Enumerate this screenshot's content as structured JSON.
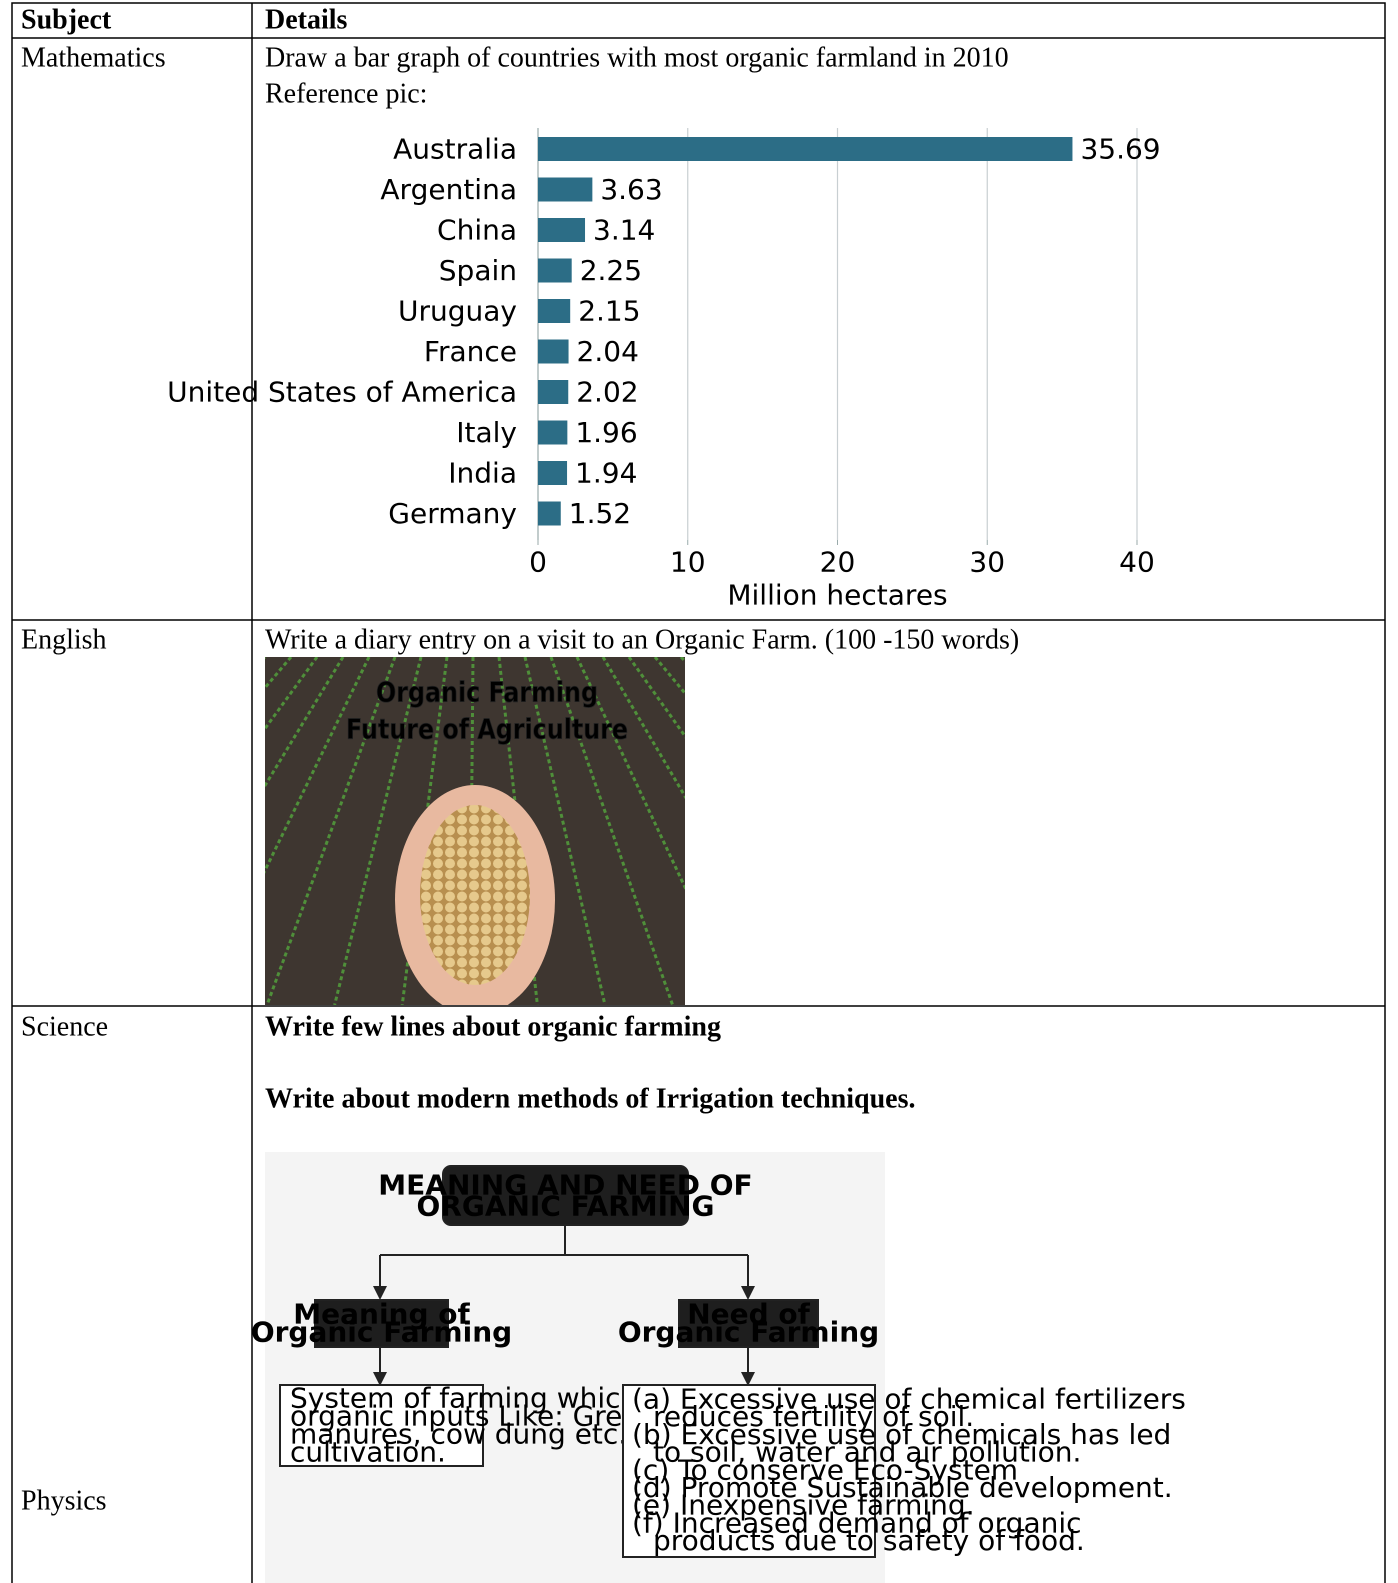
{
  "table": {
    "header": [
      "Subject",
      "Details"
    ],
    "rows": [
      {
        "subject": [
          "Mathematics"
        ],
        "details": [
          "Draw a bar graph of countries with most organic farmland in 2010",
          "Reference pic:"
        ],
        "chart": {
          "type": "bar",
          "orientation": "horizontal",
          "categories": [
            "Australia",
            "Argentina",
            "China",
            "Spain",
            "Uruguay",
            "France",
            "United States of America",
            "Italy",
            "India",
            "Germany"
          ],
          "values": [
            35.69,
            3.63,
            3.14,
            2.25,
            2.15,
            2.04,
            2.02,
            1.96,
            1.94,
            1.52
          ],
          "color": "#2c6d86",
          "xlim": [
            0,
            40
          ],
          "xticks": [
            0,
            10,
            20,
            30,
            40
          ],
          "grid": true,
          "xlabel": "Million hectares"
        }
      },
      {
        "subject": [
          "English"
        ],
        "details": [
          "Write a diary entry on a visit to an Organic Farm. (100 -150 words)"
        ],
        "image": {
          "caption": [
            "Organic Farming",
            "Future of Agriculture"
          ]
        }
      },
      {
        "subject": [
          "Science",
          "Physics"
        ],
        "details": [
          "Write few lines about organic farming",
          "Write about modern methods of Irrigation techniques."
        ],
        "diagram": {
          "nodes": [
            {
              "label": [
                "MEANING AND NEED OF",
                "ORGANIC FARMING"
              ]
            },
            {
              "label": [
                "Meaning of",
                "Organic Farming"
              ]
            },
            {
              "label": [
                "Need of",
                "Organic Farming"
              ]
            },
            {
              "label": [
                "System of farming  which uses",
                "organic inputs Like: Green",
                "manures, cow dung etc. for",
                "cultivation."
              ]
            },
            {
              "label": [
                "(a) Excessive use of chemical fertilizers",
                "reduces fertility of soil.",
                "(b) Excessive use of chemicals has led",
                "to soil, water and air pollution.",
                "(c) To conserve Eco-System",
                "(d) Promote Sustainable development.",
                "(e) Inexpensive farming.",
                "(f) Increased demand of organic",
                "products due to safety of food."
              ]
            }
          ]
        }
      }
    ]
  }
}
